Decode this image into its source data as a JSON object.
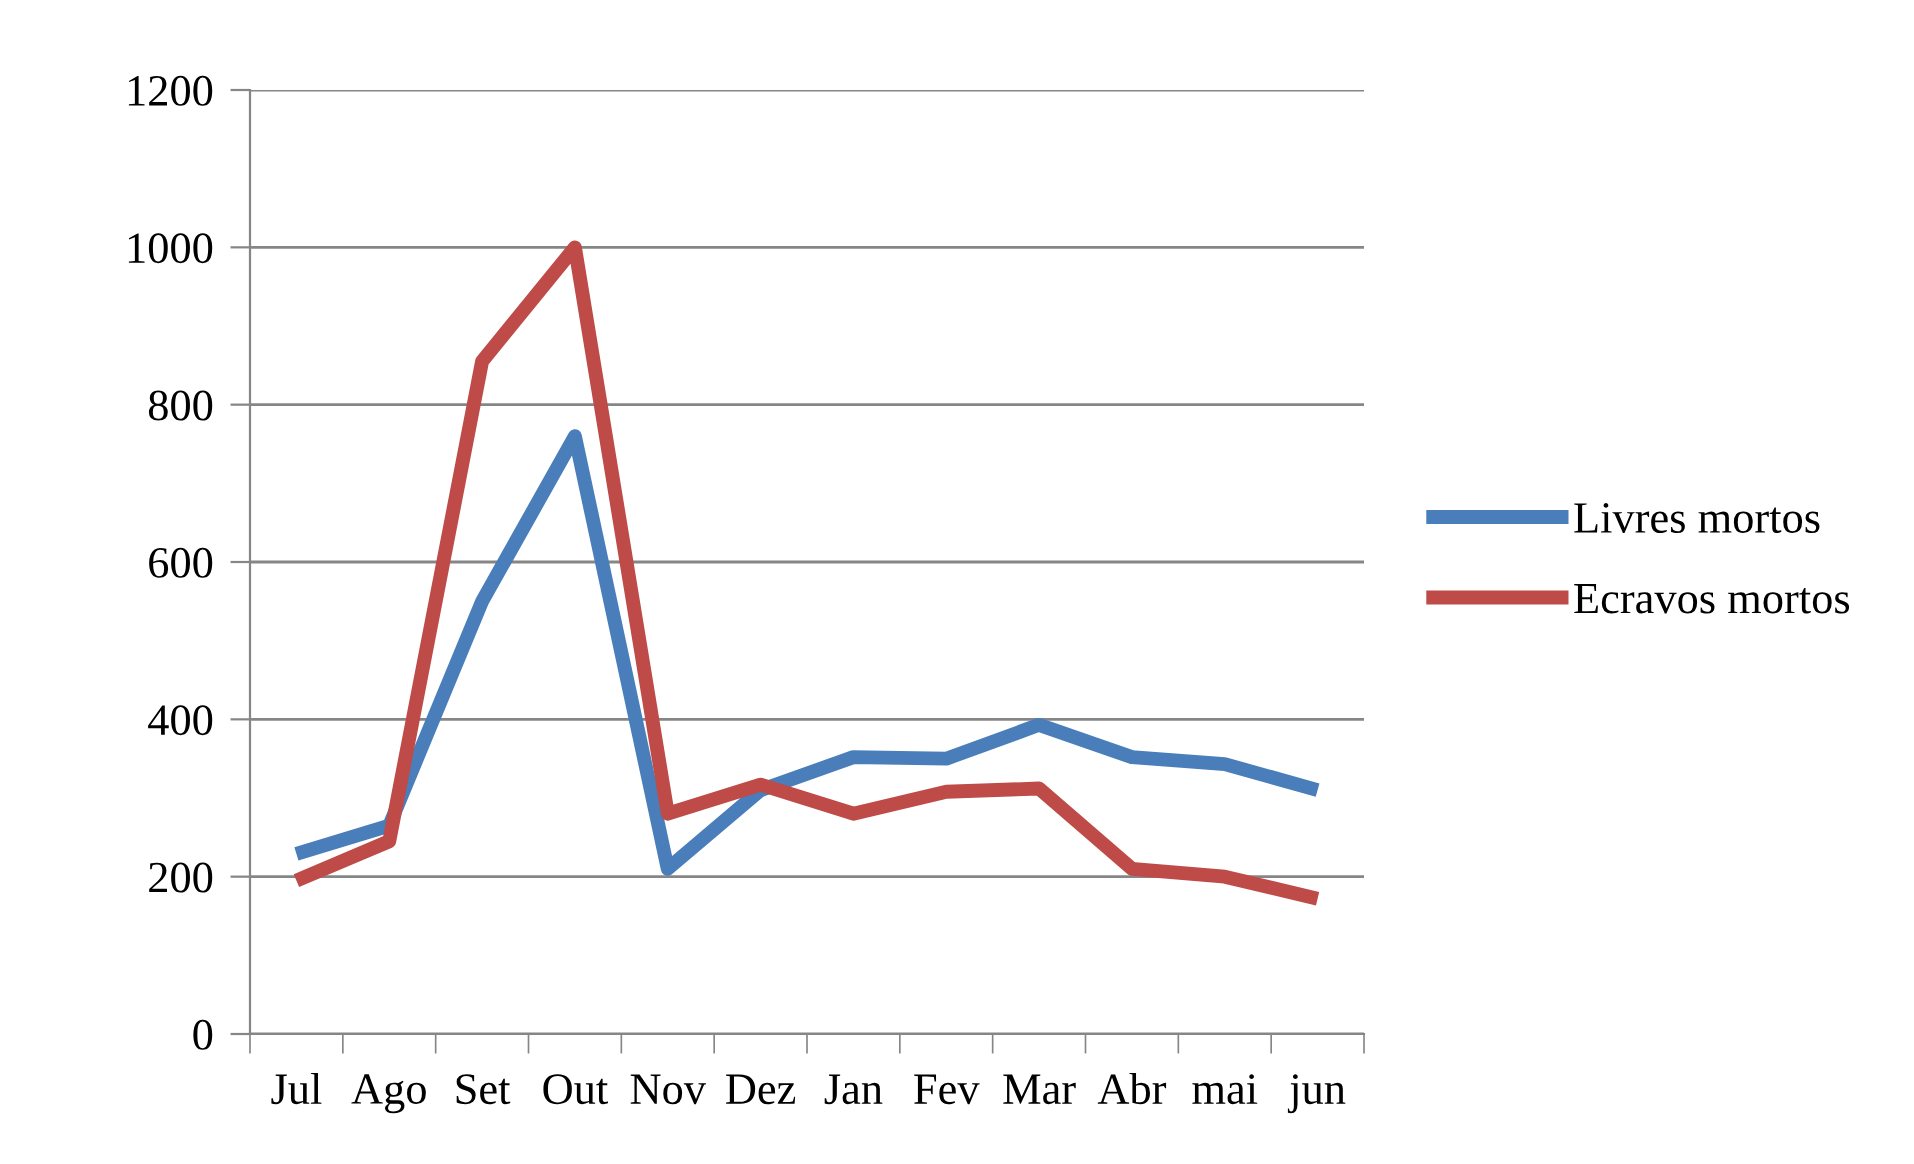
{
  "chart_data": {
    "type": "line",
    "categories": [
      "Jul",
      "Ago",
      "Set",
      "Out",
      "Nov",
      "Dez",
      "Jan",
      "Fev",
      "Mar",
      "Abr",
      "mai",
      "jun"
    ],
    "series": [
      {
        "name": "Livres mortos",
        "color": "#4a7ebb",
        "values": [
          229,
          265,
          550,
          760,
          210,
          310,
          352,
          350,
          393,
          352,
          343,
          310
        ]
      },
      {
        "name": "Ecravos mortos",
        "color": "#be4b48",
        "values": [
          195,
          245,
          855,
          1000,
          280,
          317,
          280,
          308,
          312,
          210,
          200,
          172
        ]
      }
    ],
    "ylim": [
      0,
      1200
    ],
    "yticks": [
      0,
      200,
      400,
      600,
      800,
      1000,
      1200
    ],
    "grid": "y",
    "legend": "right",
    "marker": "none",
    "line_style": "solid"
  }
}
